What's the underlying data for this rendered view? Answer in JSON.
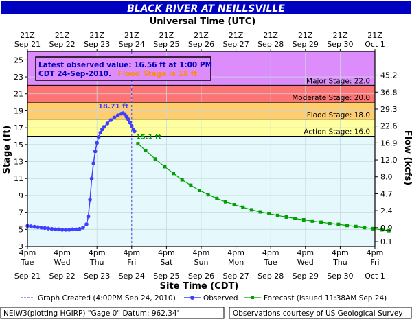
{
  "chart_data": {
    "type": "line",
    "title": "BLACK RIVER AT NEILLSVILLE",
    "top_axis_title": "Universal Time (UTC)",
    "bottom_axis_title": "Site Time (CDT)",
    "left_axis_title": "Stage (ft)",
    "right_axis_title": "Flow (kcfs)",
    "utc_ticks": [
      {
        "t": 0,
        "l1": "21Z",
        "l2": "Sep 21"
      },
      {
        "t": 1,
        "l1": "21Z",
        "l2": "Sep 22"
      },
      {
        "t": 2,
        "l1": "21Z",
        "l2": "Sep 23"
      },
      {
        "t": 3,
        "l1": "21Z",
        "l2": "Sep 24"
      },
      {
        "t": 4,
        "l1": "21Z",
        "l2": "Sep 25"
      },
      {
        "t": 5,
        "l1": "21Z",
        "l2": "Sep 26"
      },
      {
        "t": 6,
        "l1": "21Z",
        "l2": "Sep 27"
      },
      {
        "t": 7,
        "l1": "21Z",
        "l2": "Sep 28"
      },
      {
        "t": 8,
        "l1": "21Z",
        "l2": "Sep 29"
      },
      {
        "t": 9,
        "l1": "21Z",
        "l2": "Sep 30"
      },
      {
        "t": 10,
        "l1": "21Z",
        "l2": "Oct 1"
      }
    ],
    "site_ticks": [
      {
        "t": 0,
        "l1": "4pm",
        "l2": "Tue",
        "l3": "Sep 21"
      },
      {
        "t": 1,
        "l1": "4pm",
        "l2": "Wed",
        "l3": "Sep 22"
      },
      {
        "t": 2,
        "l1": "4pm",
        "l2": "Thu",
        "l3": "Sep 23"
      },
      {
        "t": 3,
        "l1": "4pm",
        "l2": "Fri",
        "l3": "Sep 24"
      },
      {
        "t": 4,
        "l1": "4pm",
        "l2": "Sat",
        "l3": "Sep 25"
      },
      {
        "t": 5,
        "l1": "4pm",
        "l2": "Sun",
        "l3": "Sep 26"
      },
      {
        "t": 6,
        "l1": "4pm",
        "l2": "Mon",
        "l3": "Sep 27"
      },
      {
        "t": 7,
        "l1": "4pm",
        "l2": "Tue",
        "l3": "Sep 28"
      },
      {
        "t": 8,
        "l1": "4pm",
        "l2": "Wed",
        "l3": "Sep 29"
      },
      {
        "t": 9,
        "l1": "4pm",
        "l2": "Thu",
        "l3": "Sep 30"
      },
      {
        "t": 10,
        "l1": "4pm",
        "l2": "Fri",
        "l3": "Oct 1"
      }
    ],
    "ylim": [
      3,
      26
    ],
    "stage_ticks": [
      3,
      5,
      7,
      9,
      11,
      13,
      15,
      17,
      19,
      21,
      23,
      25
    ],
    "flow_ticks": [
      {
        "stage": 3.57,
        "label": "0.1"
      },
      {
        "stage": 5.2,
        "label": "0.9"
      },
      {
        "stage": 7.2,
        "label": "2.4"
      },
      {
        "stage": 9.2,
        "label": "4.7"
      },
      {
        "stage": 11.2,
        "label": "8.0"
      },
      {
        "stage": 13.2,
        "label": "12.0"
      },
      {
        "stage": 15.2,
        "label": "16.9"
      },
      {
        "stage": 17.2,
        "label": "22.6"
      },
      {
        "stage": 19.2,
        "label": "29.3"
      },
      {
        "stage": 21.2,
        "label": "36.8"
      },
      {
        "stage": 23.2,
        "label": "45.2"
      }
    ],
    "bands": [
      {
        "from": 3,
        "to": 16,
        "color": "#e5f8fb",
        "label": ""
      },
      {
        "from": 16,
        "to": 18,
        "color": "#ffff9e",
        "label": "Action Stage: 16.0'"
      },
      {
        "from": 18,
        "to": 20,
        "color": "#ffcc6e",
        "label": "Flood Stage: 18.0'"
      },
      {
        "from": 20,
        "to": 22,
        "color": "#fd7474",
        "label": "Moderate Stage: 20.0'"
      },
      {
        "from": 22,
        "to": 26,
        "color": "#dc8cfb",
        "label": "Major Stage: 22.0'"
      }
    ],
    "graph_created_t": 3.0,
    "observed": {
      "name": "Observed",
      "color": "#3f3fff",
      "points": [
        [
          0.0,
          5.4
        ],
        [
          0.1,
          5.35
        ],
        [
          0.2,
          5.3
        ],
        [
          0.3,
          5.25
        ],
        [
          0.4,
          5.2
        ],
        [
          0.5,
          5.15
        ],
        [
          0.6,
          5.1
        ],
        [
          0.7,
          5.05
        ],
        [
          0.8,
          5.0
        ],
        [
          0.9,
          5.0
        ],
        [
          1.0,
          4.95
        ],
        [
          1.1,
          4.95
        ],
        [
          1.2,
          4.95
        ],
        [
          1.3,
          5.0
        ],
        [
          1.4,
          5.0
        ],
        [
          1.5,
          5.05
        ],
        [
          1.6,
          5.2
        ],
        [
          1.7,
          5.6
        ],
        [
          1.75,
          6.5
        ],
        [
          1.8,
          8.5
        ],
        [
          1.85,
          11.0
        ],
        [
          1.9,
          12.8
        ],
        [
          1.95,
          14.2
        ],
        [
          2.0,
          15.2
        ],
        [
          2.05,
          15.9
        ],
        [
          2.1,
          16.4
        ],
        [
          2.15,
          16.8
        ],
        [
          2.2,
          17.1
        ],
        [
          2.3,
          17.5
        ],
        [
          2.4,
          17.9
        ],
        [
          2.5,
          18.2
        ],
        [
          2.6,
          18.45
        ],
        [
          2.7,
          18.65
        ],
        [
          2.75,
          18.71
        ],
        [
          2.8,
          18.6
        ],
        [
          2.85,
          18.3
        ],
        [
          2.9,
          18.0
        ],
        [
          2.95,
          17.6
        ],
        [
          3.0,
          17.2
        ],
        [
          3.05,
          16.8
        ],
        [
          3.08,
          16.56
        ]
      ],
      "peak": {
        "t": 2.75,
        "stage": 18.71,
        "label": "18.71 ft"
      }
    },
    "forecast": {
      "name": "Forecast (issued 11:38AM Sep 24)",
      "color": "#00a000",
      "points": [
        [
          3.18,
          15.1
        ],
        [
          3.4,
          14.3
        ],
        [
          3.68,
          13.3
        ],
        [
          3.95,
          12.4
        ],
        [
          4.2,
          11.6
        ],
        [
          4.45,
          10.85
        ],
        [
          4.7,
          10.2
        ],
        [
          4.95,
          9.6
        ],
        [
          5.2,
          9.1
        ],
        [
          5.45,
          8.65
        ],
        [
          5.7,
          8.25
        ],
        [
          5.95,
          7.9
        ],
        [
          6.2,
          7.6
        ],
        [
          6.45,
          7.3
        ],
        [
          6.7,
          7.05
        ],
        [
          6.95,
          6.85
        ],
        [
          7.2,
          6.62
        ],
        [
          7.45,
          6.45
        ],
        [
          7.7,
          6.28
        ],
        [
          7.95,
          6.12
        ],
        [
          8.2,
          5.97
        ],
        [
          8.45,
          5.83
        ],
        [
          8.7,
          5.7
        ],
        [
          8.95,
          5.58
        ],
        [
          9.2,
          5.45
        ],
        [
          9.45,
          5.33
        ],
        [
          9.7,
          5.2
        ],
        [
          9.95,
          5.08
        ],
        [
          10.2,
          4.95
        ],
        [
          10.4,
          4.85
        ]
      ],
      "first": {
        "t": 3.18,
        "stage": 15.1,
        "label": "15.1 ft"
      }
    },
    "info_box": {
      "line1": "Latest observed value: 16.56 ft at 1:00 PM",
      "line2_a": "CDT 24-Sep-2010.",
      "line2_b": "Flood Stage is 18 ft"
    },
    "legend": {
      "created": "Graph Created (4:00PM Sep 24, 2010)",
      "observed": "Observed",
      "forecast": "Forecast (issued 11:38AM Sep 24)"
    },
    "footer": {
      "left": "NEIW3(plotting HGIRP) \"Gage 0\" Datum: 962.34'",
      "right": "Observations courtesy of US Geological Survey"
    },
    "colors": {
      "title_bg": "#0000c0",
      "title_text": "#ffffff",
      "axis": "#000000",
      "label_text": "#0000c0",
      "info_orange": "#ff8c00"
    }
  }
}
